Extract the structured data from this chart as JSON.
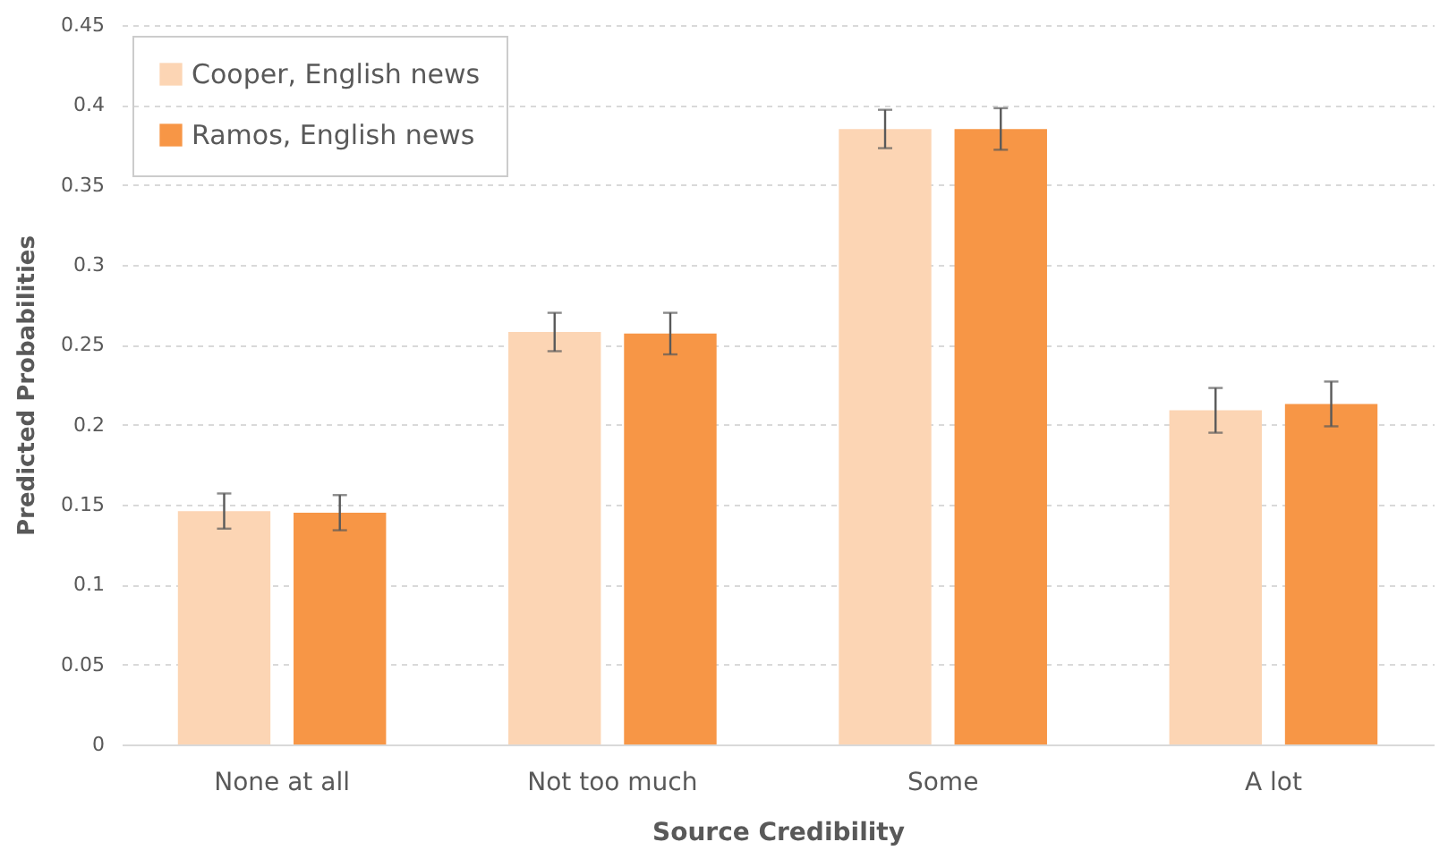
{
  "chart_data": {
    "type": "bar",
    "xlabel": "Source Credibility",
    "ylabel": "Predicted Probabilities",
    "categories": [
      "None at all",
      "Not too much",
      "Some",
      "A lot"
    ],
    "series": [
      {
        "name": "Cooper, English news",
        "color": "#fcd5b4",
        "values": [
          0.146,
          0.258,
          0.385,
          0.209
        ],
        "errors": [
          0.011,
          0.012,
          0.012,
          0.014
        ]
      },
      {
        "name": "Ramos, English news",
        "color": "#f79646",
        "values": [
          0.145,
          0.257,
          0.385,
          0.213
        ],
        "errors": [
          0.011,
          0.013,
          0.013,
          0.014
        ]
      }
    ],
    "ylim": [
      0,
      0.45
    ],
    "yticks": [
      0,
      0.05,
      0.1,
      0.15,
      0.2,
      0.25,
      0.3,
      0.35,
      0.4,
      0.45
    ],
    "grid": "y",
    "legend": "top left"
  }
}
